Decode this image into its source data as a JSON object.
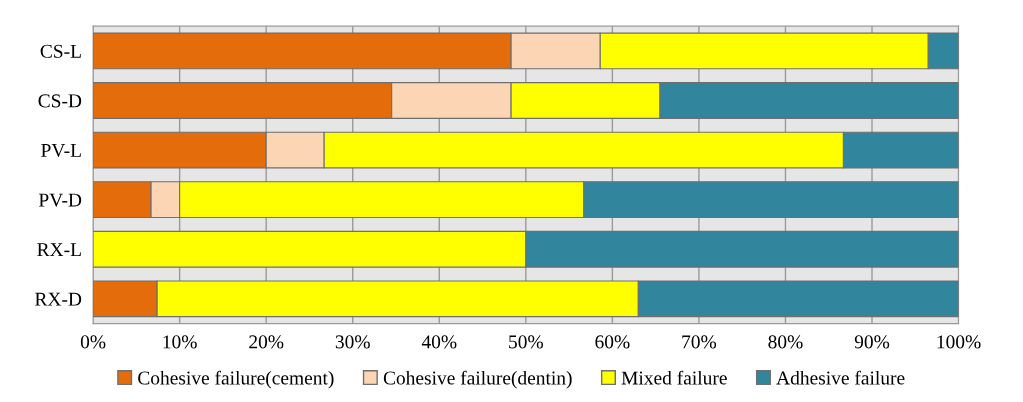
{
  "chart_data": {
    "type": "bar",
    "orientation": "horizontal",
    "stacked": true,
    "categories": [
      "CS-L",
      "CS-D",
      "PV-L",
      "PV-D",
      "RX-L",
      "RX-D"
    ],
    "series": [
      {
        "name": "Cohesive failure(cement)",
        "color": "#e46c0a",
        "values": [
          48.3,
          34.5,
          20,
          6.7,
          0,
          7.4
        ]
      },
      {
        "name": "Cohesive failure(dentin)",
        "color": "#fcd5b5",
        "values": [
          10.3,
          13.8,
          6.7,
          3.3,
          0,
          0
        ]
      },
      {
        "name": "Mixed failure",
        "color": "#ffff00",
        "values": [
          37.9,
          17.2,
          60,
          46.7,
          50,
          55.6
        ]
      },
      {
        "name": "Adhesive failure",
        "color": "#31859c",
        "values": [
          3.5,
          34.5,
          13.3,
          43.3,
          50,
          37.0
        ]
      }
    ],
    "xlim": [
      0,
      100
    ],
    "xticks": [
      {
        "value": 0,
        "label": "0%"
      },
      {
        "value": 10,
        "label": "10%"
      },
      {
        "value": 20,
        "label": "20%"
      },
      {
        "value": 30,
        "label": "30%"
      },
      {
        "value": 40,
        "label": "40%"
      },
      {
        "value": 50,
        "label": "50%"
      },
      {
        "value": 60,
        "label": "60%"
      },
      {
        "value": 70,
        "label": "70%"
      },
      {
        "value": 80,
        "label": "80%"
      },
      {
        "value": 90,
        "label": "90%"
      },
      {
        "value": 100,
        "label": "100%"
      }
    ],
    "grid": "x",
    "legend": "bottom"
  }
}
